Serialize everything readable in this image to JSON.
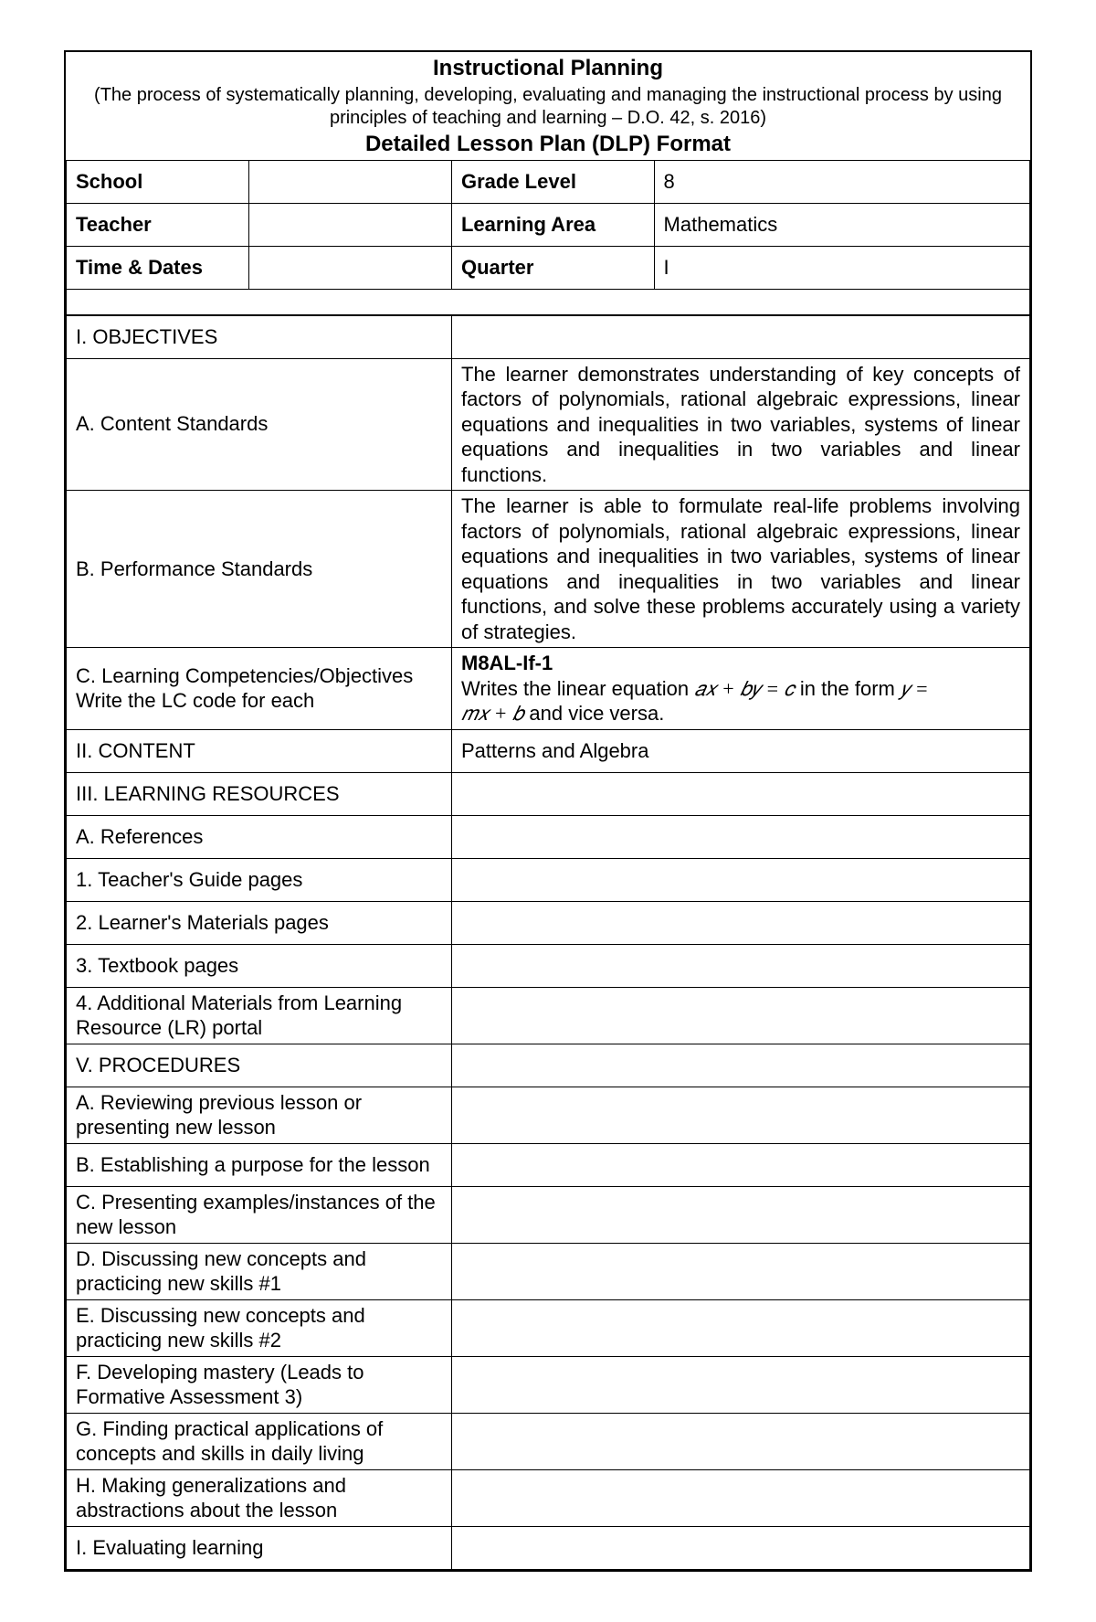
{
  "header": {
    "title": "Instructional Planning",
    "subtitle": "(The process of systematically planning, developing, evaluating and managing the instructional process by using principles of teaching and learning – D.O. 42, s. 2016)",
    "format_line": "Detailed Lesson Plan (DLP) Format"
  },
  "info": {
    "school_label": "School",
    "school_value": "",
    "grade_label": "Grade Level",
    "grade_value": "8",
    "teacher_label": "Teacher",
    "teacher_value": "",
    "area_label": "Learning Area",
    "area_value": "Mathematics",
    "time_label": "Time & Dates",
    "time_value": "",
    "quarter_label": "Quarter",
    "quarter_value": "I"
  },
  "sections": {
    "objectives_heading": "I. OBJECTIVES",
    "content_standards_label": "A. Content Standards",
    "content_standards_text": "The learner demonstrates understanding of key concepts of factors of polynomials, rational algebraic expressions, linear equations and inequalities in two variables, systems of linear equations and inequalities in two variables and linear functions.",
    "performance_standards_label": "B. Performance Standards",
    "performance_standards_text": "The learner is able to formulate real-life problems involving factors of polynomials, rational algebraic expressions, linear equations and inequalities in two variables, systems of linear equations and inequalities in two variables and linear functions, and solve these problems accurately using a variety of strategies.",
    "competencies_label_l1": "C. Learning Competencies/Objectives",
    "competencies_label_l2": "Write the LC code for each",
    "competencies_code": "M8AL-If-1",
    "competencies_text_pre": "Writes the linear equation ",
    "competencies_eq1": "𝑎𝑥  +  𝑏𝑦  =  𝑐",
    "competencies_text_mid": " in the form ",
    "competencies_eq2": "𝑦  =  ",
    "competencies_eq3": " 𝑚𝑥  +  𝑏",
    "competencies_text_post": " and vice versa.",
    "content_heading": "II. CONTENT",
    "content_value": "Patterns and Algebra",
    "resources_heading": "III. LEARNING RESOURCES",
    "references_label": "A. References",
    "tg_label": "1. Teacher's Guide pages",
    "lm_label": "2. Learner's Materials pages",
    "tb_label": "3. Textbook pages",
    "lr_label_l1": "4. Additional Materials from Learning",
    "lr_label_l2": "Resource (LR) portal",
    "procedures_heading": "V. PROCEDURES",
    "proc_a_l1": "A. Reviewing previous lesson or",
    "proc_a_l2": "presenting new lesson",
    "proc_b": "B. Establishing a purpose for the lesson",
    "proc_c_l1": "C. Presenting examples/instances of the",
    "proc_c_l2": "new lesson",
    "proc_d_l1": "D. Discussing new concepts and",
    "proc_d_l2": "practicing new skills #1",
    "proc_e_l1": "E. Discussing new concepts and",
    "proc_e_l2": "practicing new skills #2",
    "proc_f_l1": "F. Developing mastery (Leads to",
    "proc_f_l2": "Formative Assessment 3)",
    "proc_g_l1": "G. Finding practical applications of",
    "proc_g_l2": "concepts and skills in daily living",
    "proc_h_l1": "H. Making generalizations and",
    "proc_h_l2": "abstractions about the lesson",
    "proc_i": "I. Evaluating learning"
  }
}
